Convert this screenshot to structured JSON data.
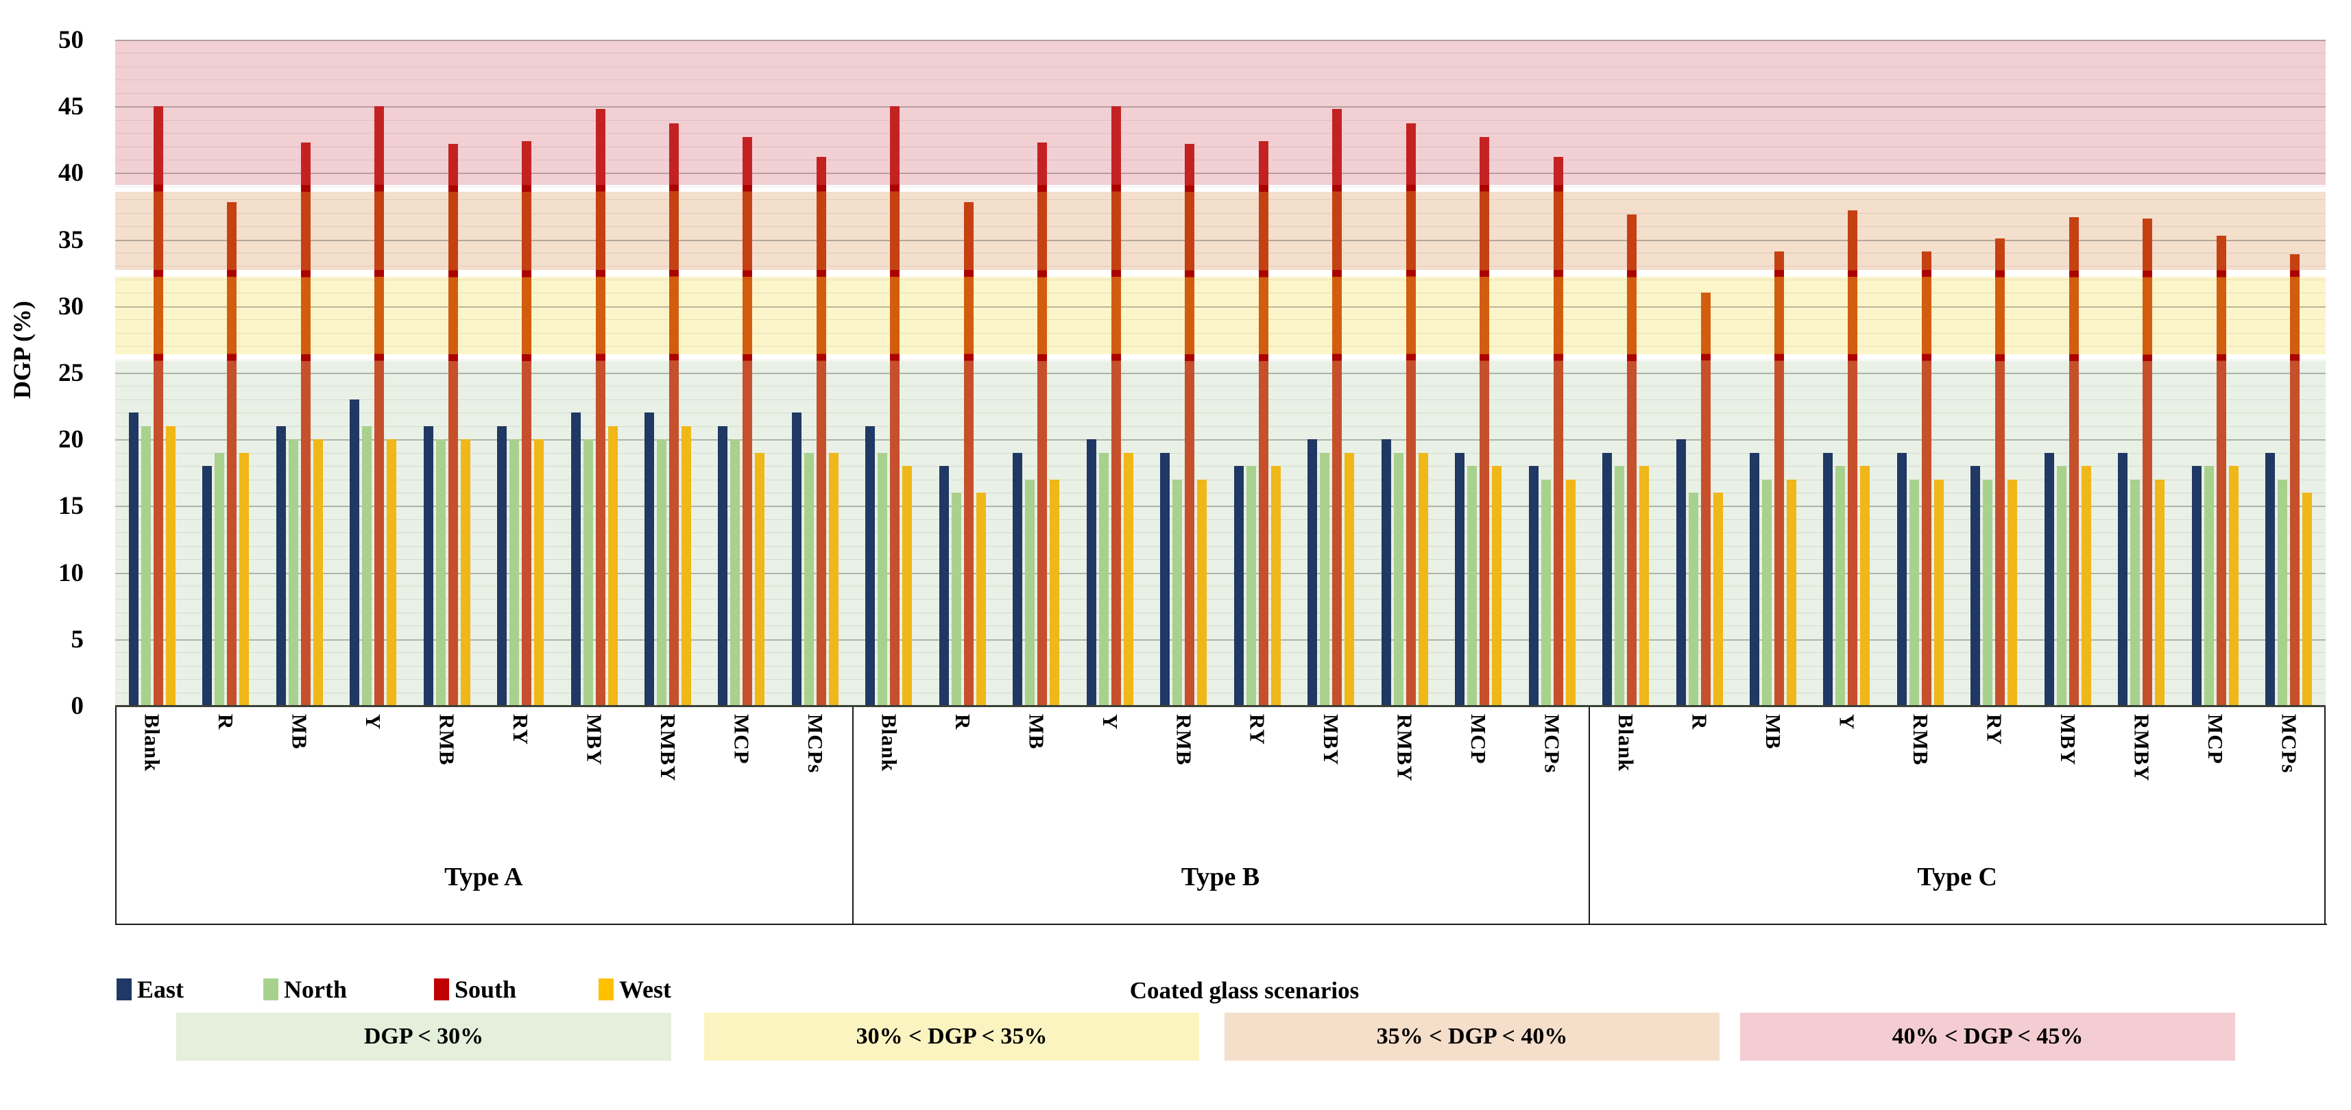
{
  "chart_data": {
    "type": "bar",
    "title": "",
    "ylabel": "DGP (%)",
    "ylim": [
      0,
      50
    ],
    "ytick_step": 5,
    "ytick_labels": [
      "0",
      "5",
      "10",
      "15",
      "20",
      "25",
      "30",
      "35",
      "40",
      "45",
      "50"
    ],
    "grid": "horizontal, minor every 1 unit, major every 5 units",
    "legend_position": "bottom",
    "legend_title": "Coated glass scenarios",
    "groups": [
      {
        "label": "Type A"
      },
      {
        "label": "Type B"
      },
      {
        "label": "Type C"
      }
    ],
    "categories_per_group": [
      "Blank",
      "R",
      "MB",
      "Y",
      "RMB",
      "RY",
      "MBY",
      "RMBY",
      "MCP",
      "MCPs"
    ],
    "series": [
      {
        "name": "East",
        "color": "#1F3864",
        "values": [
          22,
          18,
          21,
          23,
          21,
          21,
          22,
          22,
          21,
          22,
          21,
          18,
          19,
          20,
          19,
          18,
          20,
          20,
          19,
          18,
          19,
          20,
          19,
          19,
          19,
          18,
          19,
          19,
          18,
          19
        ]
      },
      {
        "name": "North",
        "color": "#A9D18E",
        "values": [
          21,
          19,
          20,
          21,
          20,
          20,
          20,
          20,
          20,
          19,
          19,
          16,
          17,
          19,
          17,
          18,
          19,
          19,
          18,
          17,
          18,
          16,
          17,
          18,
          17,
          17,
          18,
          17,
          18,
          17
        ]
      },
      {
        "name": "South",
        "color": "#C00000",
        "values": [
          45,
          37.8,
          42.3,
          45,
          42.2,
          42.4,
          44.8,
          43.7,
          42.7,
          41.2,
          45,
          37.8,
          42.3,
          45,
          42.2,
          42.4,
          44.8,
          43.7,
          42.7,
          41.2,
          36.9,
          31,
          34.1,
          37.2,
          34.1,
          35.1,
          36.7,
          36.6,
          35.3,
          33.9
        ]
      },
      {
        "name": "West",
        "color": "#FFC000",
        "values": [
          21,
          19,
          20,
          20,
          20,
          20,
          21,
          21,
          19,
          19,
          18,
          16,
          17,
          19,
          17,
          18,
          19,
          19,
          18,
          17,
          18,
          16,
          17,
          18,
          17,
          17,
          18,
          17,
          18,
          16
        ]
      }
    ],
    "south_gradient": [
      {
        "from": 39.1,
        "to": 50,
        "color": "#c42222"
      },
      {
        "from": 38.6,
        "to": 39.1,
        "color": "#ab0400"
      },
      {
        "from": 32.7,
        "to": 38.6,
        "color": "#c54111"
      },
      {
        "from": 32.2,
        "to": 32.7,
        "color": "#ab0400"
      },
      {
        "from": 26.4,
        "to": 32.2,
        "color": "#d25d0e"
      },
      {
        "from": 25.9,
        "to": 26.4,
        "color": "#ab0400"
      },
      {
        "from": 0,
        "to": 25.9,
        "color": "#c6502b"
      }
    ],
    "bands": [
      {
        "label": "DGP < 30%",
        "chart_color": "#E9F0E5",
        "legend_color": "#E4EFDC",
        "draw_from": 0,
        "draw_to": 25.9
      },
      {
        "label": "30% < DGP < 35%",
        "chart_color": "#FBF5C9",
        "legend_color": "#FCF4C0",
        "draw_from": 26.4,
        "draw_to": 32.2
      },
      {
        "label": "35% < DGP < 40%",
        "chart_color": "#F4DECC",
        "legend_color": "#F5DECA",
        "draw_from": 32.7,
        "draw_to": 38.6
      },
      {
        "label": "40% < DGP < 45%",
        "chart_color": "#F2CFD3",
        "legend_color": "#F3CDD2",
        "draw_from": 39.1,
        "draw_to": 50
      }
    ]
  }
}
